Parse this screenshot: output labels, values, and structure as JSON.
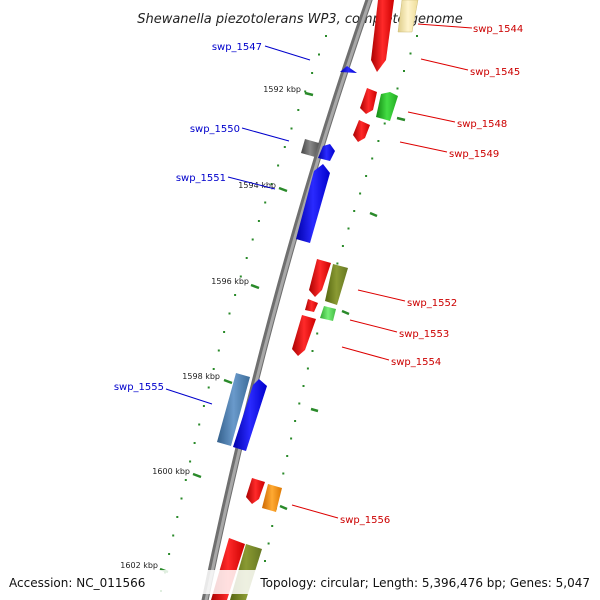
{
  "title": "Shewanella piezotolerans WP3, complete genome",
  "footer": {
    "accession": "Accession: NC_011566",
    "summary": "Topology: circular; Length: 5,396,476 bp; Genes: 5,047"
  },
  "colors": {
    "backbone": "#888888",
    "tick": "#2a8a2a",
    "forward_label": "#0000cc",
    "reverse_label": "#cc0000"
  },
  "ticks": [
    {
      "label": "1592 kbp"
    },
    {
      "label": "1594 kbp"
    },
    {
      "label": "1596 kbp"
    },
    {
      "label": "1598 kbp"
    },
    {
      "label": "1600 kbp"
    },
    {
      "label": "1602 kbp"
    }
  ],
  "genes": [
    {
      "id": "swp_1544",
      "label": "swp_1544",
      "strand": "reverse",
      "color": "#ffeeaa"
    },
    {
      "id": "swp_1545",
      "label": "swp_1545",
      "strand": "reverse",
      "color": "#ee1111"
    },
    {
      "id": "swp_1547",
      "label": "swp_1547",
      "strand": "forward",
      "color": "#1111ee"
    },
    {
      "id": "swp_1548",
      "label": "swp_1548",
      "strand": "reverse",
      "color": "#22aa22"
    },
    {
      "id": "swp_1549",
      "label": "swp_1549",
      "strand": "reverse",
      "color": "#ee1111"
    },
    {
      "id": "swp_1550",
      "label": "swp_1550",
      "strand": "forward",
      "color": "#666666"
    },
    {
      "id": "swp_1551",
      "label": "swp_1551",
      "strand": "forward",
      "color": "#1111ee"
    },
    {
      "id": "swp_1552",
      "label": "swp_1552",
      "strand": "reverse",
      "color": "#778822"
    },
    {
      "id": "swp_1553",
      "label": "swp_1553",
      "strand": "reverse",
      "color": "#44cc44"
    },
    {
      "id": "swp_1554",
      "label": "swp_1554",
      "strand": "reverse",
      "color": "#ee1111"
    },
    {
      "id": "swp_1555",
      "label": "swp_1555",
      "strand": "forward",
      "color": "#4477aa"
    },
    {
      "id": "swp_1556",
      "label": "swp_1556",
      "strand": "reverse",
      "color": "#ee8800"
    }
  ]
}
